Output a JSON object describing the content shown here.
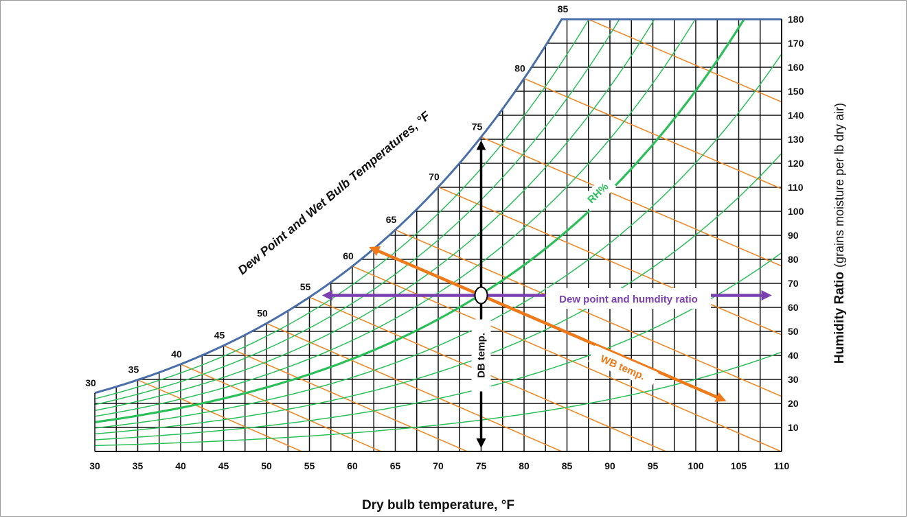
{
  "chart_data": {
    "type": "psychrometric",
    "xlabel": "Dry bulb temperature, °F",
    "ylabel": "Humidity Ratio",
    "ylabel_unit": "(grains moisture per lb dry air)",
    "curve_label": "Dew Point and Wet Bulb Temperatures, °F",
    "xlim": [
      30,
      110
    ],
    "ylim": [
      0,
      180
    ],
    "x_ticks": [
      30,
      35,
      40,
      45,
      50,
      55,
      60,
      65,
      70,
      75,
      80,
      85,
      90,
      95,
      100,
      105,
      110
    ],
    "y_ticks": [
      10,
      20,
      30,
      40,
      50,
      60,
      70,
      80,
      90,
      100,
      110,
      120,
      130,
      140,
      150,
      160,
      170,
      180
    ],
    "saturation_labels": [
      30,
      35,
      40,
      45,
      50,
      55,
      60,
      65,
      70,
      75,
      80,
      85
    ],
    "grid": true,
    "rh_curves_percent": [
      10,
      20,
      30,
      40,
      50,
      60,
      70,
      80,
      90
    ],
    "rh_bold_percent": 50,
    "wb_lines_f": [
      35,
      40,
      45,
      50,
      55,
      60,
      65,
      70,
      75,
      80,
      85
    ],
    "state_point": {
      "db": 75,
      "hr": 65
    },
    "annotations": {
      "rh": "RH%",
      "dew_point": "Dew point and humdity ratio",
      "wb": "WB temp.",
      "db": "DB temp."
    },
    "colors": {
      "saturation": "#4a6ea8",
      "grid": "#111111",
      "rh": "#2bbf5a",
      "wb": "#ee8a2a",
      "wb_arrow": "#ee7a1a",
      "dew_arrow": "#7a40b0",
      "db_arrow": "#000000"
    }
  }
}
